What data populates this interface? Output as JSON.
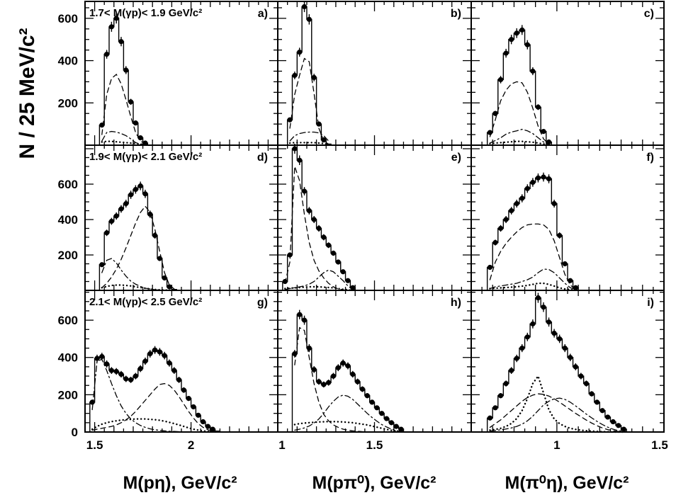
{
  "figure": {
    "y_title": "N / 25 MeV/c²",
    "x_titles": [
      "M(pη), GeV/c²",
      "M(pπ⁰), GeV/c²",
      "M(π⁰η), GeV/c²"
    ],
    "row_labels": [
      "1.7< M(γp)< 1.9 GeV/c²",
      "1.9< M(γp)< 2.1 GeV/c²",
      "2.1< M(γp)< 2.5 GeV/c²"
    ],
    "panel_labels": [
      "a)",
      "b)",
      "c)",
      "d)",
      "e)",
      "f)",
      "g)",
      "h)",
      "i)"
    ],
    "y_tick_labels": {
      "row1": [
        "200",
        "400",
        "600"
      ],
      "row2": [
        "200",
        "400",
        "600"
      ],
      "row3": [
        "0",
        "200",
        "400",
        "600"
      ]
    },
    "x_tick_labels": {
      "col1": [
        "1.5",
        "2"
      ],
      "col2": [
        "1",
        "1.5"
      ],
      "col3": [
        "1",
        "1.5"
      ]
    }
  },
  "chart_data": {
    "type": "histogram-grid",
    "rows": 3,
    "cols": 3,
    "columns": [
      {
        "xlim": [
          1.45,
          2.45
        ],
        "xticks": [
          1.5,
          2
        ]
      },
      {
        "xlim": [
          1.0,
          2.0
        ],
        "xticks": [
          1.0,
          1.5
        ]
      },
      {
        "xlim": [
          0.6,
          1.5
        ],
        "xticks": [
          1.0,
          1.5
        ]
      }
    ],
    "rows_y": [
      {
        "ylim": [
          0,
          680
        ],
        "yticks": [
          200,
          400,
          600
        ]
      },
      {
        "ylim": [
          0,
          820
        ],
        "yticks": [
          200,
          400,
          600
        ]
      },
      {
        "ylim": [
          0,
          760
        ],
        "yticks": [
          0,
          200,
          400,
          600
        ]
      }
    ],
    "bin_width_x": [
      0.025,
      0.025,
      0.025
    ],
    "panels": [
      {
        "label": "a)",
        "xmin": 1.525,
        "counts": [
          95,
          430,
          560,
          600,
          490,
          355,
          205,
          105,
          35,
          10
        ],
        "dashed": [
          50,
          240,
          315,
          335,
          290,
          215,
          135,
          60,
          20,
          5
        ],
        "dashdot": [
          20,
          60,
          65,
          62,
          55,
          45,
          30,
          12,
          5,
          2
        ],
        "dotted": [
          15,
          18,
          18,
          16,
          14,
          12,
          10,
          8,
          5,
          2
        ]
      },
      {
        "label": "b)",
        "xmin": 1.05,
        "counts": [
          120,
          330,
          440,
          655,
          595,
          320,
          100,
          25,
          5
        ],
        "dashed": [
          80,
          240,
          330,
          410,
          395,
          245,
          80,
          20,
          5
        ],
        "dashdot": [
          20,
          45,
          55,
          60,
          62,
          62,
          58,
          45,
          20
        ],
        "dotted": [
          10,
          12,
          12,
          12,
          12,
          12,
          10,
          8,
          4
        ]
      },
      {
        "label": "c)",
        "xmin": 0.675,
        "counts": [
          60,
          150,
          310,
          435,
          500,
          530,
          545,
          475,
          350,
          180,
          65,
          15
        ],
        "dashed": [
          40,
          120,
          210,
          260,
          290,
          300,
          295,
          250,
          175,
          90,
          30,
          5
        ],
        "dashdot": [
          10,
          22,
          35,
          52,
          62,
          68,
          75,
          68,
          55,
          35,
          15,
          5
        ],
        "dotted": [
          8,
          10,
          12,
          14,
          16,
          18,
          18,
          16,
          14,
          10,
          6,
          2
        ]
      },
      {
        "label": "d)",
        "xmin": 1.525,
        "counts": [
          145,
          325,
          390,
          420,
          460,
          490,
          540,
          570,
          590,
          545,
          430,
          310,
          180,
          70,
          20,
          5
        ],
        "dashed": [
          15,
          40,
          75,
          120,
          175,
          240,
          310,
          380,
          440,
          475,
          440,
          345,
          220,
          100,
          30,
          8
        ],
        "dashdot": [
          100,
          170,
          180,
          155,
          115,
          80,
          52,
          35,
          22,
          12,
          8,
          4,
          2,
          1,
          0,
          0
        ],
        "dotted": [
          15,
          22,
          28,
          30,
          30,
          28,
          25,
          20,
          16,
          12,
          8,
          5,
          3,
          2,
          1,
          0
        ]
      },
      {
        "label": "e)",
        "xmin": 1.025,
        "counts": [
          50,
          200,
          800,
          735,
          560,
          450,
          400,
          350,
          300,
          255,
          210,
          160,
          105,
          55,
          15
        ],
        "dashed": [
          40,
          160,
          700,
          620,
          430,
          270,
          170,
          110,
          70,
          40,
          20,
          8,
          3,
          1,
          0
        ],
        "dashdot": [
          5,
          10,
          15,
          20,
          25,
          35,
          50,
          75,
          100,
          115,
          105,
          80,
          55,
          25,
          5
        ],
        "dotted": [
          10,
          12,
          14,
          16,
          18,
          20,
          20,
          20,
          18,
          16,
          14,
          10,
          6,
          3,
          1
        ]
      },
      {
        "label": "f)",
        "xmin": 0.675,
        "counts": [
          130,
          270,
          350,
          400,
          450,
          490,
          520,
          575,
          610,
          635,
          640,
          630,
          490,
          310,
          150,
          55,
          15
        ],
        "dashed": [
          60,
          160,
          220,
          265,
          300,
          330,
          355,
          370,
          375,
          375,
          370,
          345,
          280,
          185,
          90,
          30,
          5
        ],
        "dashdot": [
          10,
          20,
          25,
          30,
          35,
          40,
          50,
          60,
          75,
          100,
          120,
          118,
          100,
          70,
          40,
          15,
          5
        ],
        "dotted": [
          10,
          12,
          14,
          16,
          18,
          20,
          24,
          28,
          34,
          40,
          40,
          34,
          24,
          14,
          8,
          4,
          1
        ]
      },
      {
        "label": "g)",
        "xmin": 1.475,
        "counts": [
          160,
          395,
          405,
          365,
          330,
          325,
          310,
          285,
          280,
          300,
          340,
          380,
          420,
          440,
          430,
          410,
          370,
          330,
          280,
          225,
          180,
          135,
          90,
          55,
          30,
          15,
          5
        ],
        "dashed": [
          10,
          15,
          20,
          25,
          30,
          38,
          50,
          65,
          85,
          110,
          140,
          170,
          200,
          230,
          255,
          260,
          250,
          225,
          190,
          150,
          110,
          75,
          45,
          25,
          12,
          5,
          2
        ],
        "dashdot": [
          120,
          380,
          390,
          330,
          260,
          195,
          140,
          100,
          70,
          50,
          35,
          25,
          17,
          12,
          9,
          6,
          4,
          3,
          2,
          1,
          1,
          0,
          0,
          0,
          0,
          0,
          0
        ],
        "dotted": [
          15,
          30,
          42,
          50,
          56,
          60,
          64,
          66,
          68,
          70,
          70,
          70,
          68,
          66,
          63,
          58,
          52,
          45,
          38,
          30,
          22,
          15,
          10,
          6,
          3,
          1,
          0
        ]
      },
      {
        "label": "h)",
        "xmin": 1.075,
        "counts": [
          420,
          630,
          600,
          450,
          335,
          270,
          255,
          265,
          300,
          345,
          370,
          355,
          310,
          270,
          230,
          195,
          160,
          130,
          100,
          72,
          50,
          30,
          15
        ],
        "dashed": [
          360,
          560,
          545,
          400,
          260,
          160,
          95,
          60,
          38,
          25,
          15,
          10,
          6,
          4,
          2,
          1,
          0,
          0,
          0,
          0,
          0,
          0,
          0
        ],
        "dashdot": [
          10,
          15,
          22,
          32,
          48,
          70,
          100,
          135,
          165,
          188,
          198,
          192,
          175,
          150,
          125,
          100,
          78,
          58,
          40,
          27,
          15,
          8,
          3
        ],
        "dotted": [
          40,
          45,
          48,
          50,
          52,
          54,
          55,
          56,
          56,
          55,
          54,
          52,
          50,
          46,
          42,
          38,
          32,
          26,
          20,
          14,
          9,
          5,
          2
        ]
      },
      {
        "label": "i)",
        "xmin": 0.675,
        "counts": [
          75,
          130,
          195,
          260,
          330,
          395,
          450,
          510,
          580,
          720,
          670,
          590,
          530,
          500,
          450,
          400,
          350,
          300,
          260,
          205,
          160,
          115,
          80,
          55,
          35,
          15
        ],
        "dashed": [
          25,
          45,
          65,
          90,
          115,
          140,
          165,
          185,
          198,
          205,
          202,
          193,
          178,
          160,
          140,
          120,
          100,
          82,
          64,
          48,
          34,
          22,
          13,
          7,
          3,
          1
        ],
        "dashdot": [
          5,
          8,
          12,
          16,
          22,
          30,
          42,
          60,
          85,
          115,
          145,
          165,
          178,
          182,
          175,
          160,
          140,
          118,
          96,
          76,
          57,
          40,
          26,
          15,
          7,
          2
        ],
        "dotted": [
          10,
          14,
          20,
          30,
          46,
          72,
          115,
          180,
          260,
          300,
          210,
          120,
          70,
          45,
          30,
          20,
          14,
          10,
          7,
          5,
          3,
          2,
          1,
          0,
          0,
          0
        ]
      }
    ]
  }
}
